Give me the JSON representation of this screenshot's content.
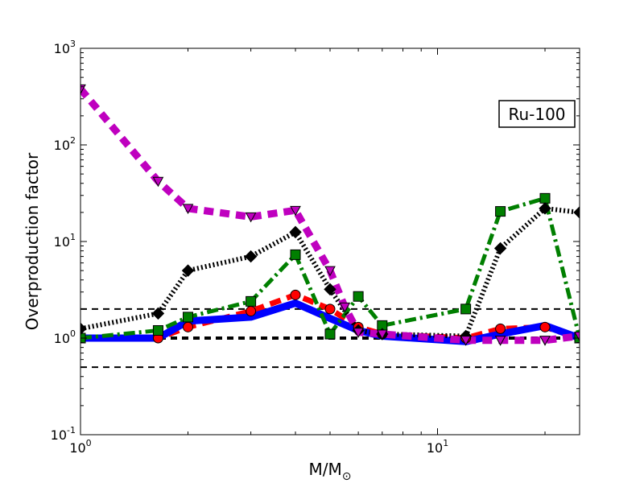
{
  "chart_data": {
    "type": "line",
    "title": "",
    "annotation": "Ru-100",
    "xlabel_base": "M/M",
    "xlabel_sub": "⊙",
    "ylabel": "Overproduction factor",
    "xscale": "log",
    "yscale": "log",
    "xlim": [
      1,
      25
    ],
    "ylim": [
      0.1,
      1000
    ],
    "x_ticks": [
      {
        "value": 1,
        "base": "10",
        "exp": "0"
      },
      {
        "value": 10,
        "base": "10",
        "exp": "1"
      }
    ],
    "y_ticks": [
      {
        "value": 0.1,
        "base": "10",
        "exp": "-1"
      },
      {
        "value": 1,
        "base": "10",
        "exp": "0"
      },
      {
        "value": 10,
        "base": "10",
        "exp": "1"
      },
      {
        "value": 100,
        "base": "10",
        "exp": "2"
      },
      {
        "value": 1000,
        "base": "10",
        "exp": "3"
      }
    ],
    "reference_lines": [
      {
        "y": 0.5,
        "style": "dashed"
      },
      {
        "y": 1.0,
        "style": "dashed-thick"
      },
      {
        "y": 2.0,
        "style": "dashed"
      }
    ],
    "grid": false,
    "series": [
      {
        "color": "#ff0000",
        "dash": "dashed",
        "marker": "circle",
        "x": [
          1,
          1.65,
          2,
          3,
          4,
          5,
          6,
          7,
          12,
          15,
          20,
          25
        ],
        "y": [
          1.0,
          1.0,
          1.3,
          1.9,
          2.8,
          2.0,
          1.3,
          1.1,
          1.0,
          1.25,
          1.3,
          1.0
        ]
      },
      {
        "color": "#0000ff",
        "dash": "solid",
        "marker": "none",
        "x": [
          1,
          1.65,
          2,
          3,
          4,
          5,
          6,
          7,
          12,
          15,
          20,
          25
        ],
        "y": [
          1.0,
          1.0,
          1.5,
          1.65,
          2.3,
          1.6,
          1.2,
          1.05,
          0.92,
          1.1,
          1.35,
          1.0
        ]
      },
      {
        "color": "#007f00",
        "dash": "dashdot",
        "marker": "square",
        "x": [
          1,
          1.65,
          2,
          3,
          4,
          5,
          6,
          7,
          12,
          15,
          20,
          25
        ],
        "y": [
          1.0,
          1.2,
          1.65,
          2.4,
          7.3,
          1.1,
          2.7,
          1.35,
          2.0,
          20.5,
          28,
          1.0
        ]
      },
      {
        "color": "#000000",
        "dash": "dotted",
        "marker": "diamond",
        "x": [
          1,
          1.65,
          2,
          3,
          4,
          5,
          6,
          7,
          12,
          15,
          20,
          25
        ],
        "y": [
          1.25,
          1.8,
          5.0,
          7.0,
          12.5,
          3.2,
          1.2,
          1.1,
          1.05,
          8.5,
          22,
          20
        ]
      },
      {
        "color": "#bf00bf",
        "dash": "dashed-thick",
        "marker": "triangle-down",
        "x": [
          1,
          1.65,
          2,
          3,
          4,
          5,
          5.5,
          6,
          7,
          12,
          15,
          20,
          25
        ],
        "y": [
          380,
          42,
          22,
          18,
          21,
          5.0,
          2.1,
          1.15,
          1.1,
          0.95,
          0.95,
          0.95,
          1.05
        ]
      }
    ]
  }
}
